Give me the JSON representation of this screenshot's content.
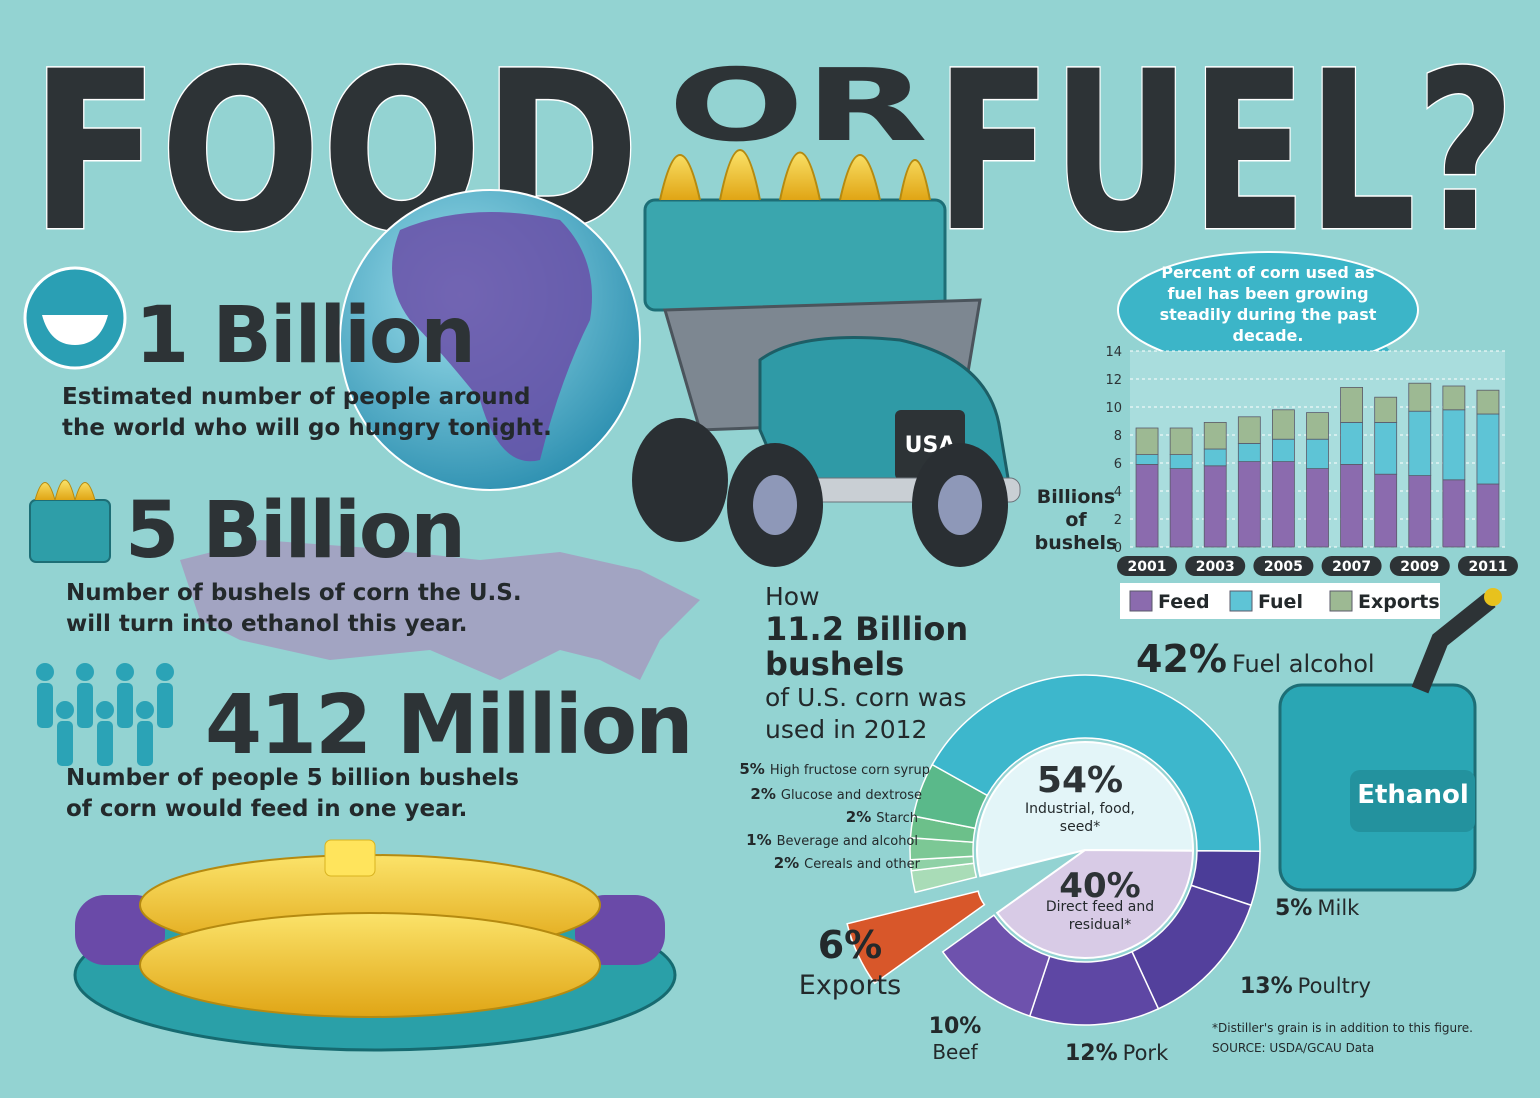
{
  "title": {
    "word1": "FOOD",
    "word2": "OR",
    "word3": "FUEL?"
  },
  "stats": [
    {
      "number": "1 Billion",
      "text": "Estimated number of people around the world who will go hungry tonight."
    },
    {
      "number": "5 Billion",
      "text": "Number of bushels of corn the U.S. will turn into ethanol this year."
    },
    {
      "number": "412 Million",
      "text": "Number of people 5 billion bushels of corn would feed in one year."
    }
  ],
  "labels": {
    "truck": "USA",
    "can": "Ethanol"
  },
  "chart_data": [
    {
      "type": "bar",
      "stacked": true,
      "annotation": "Percent of corn used as fuel has been growing steadily during the past decade.",
      "y_label": "Billions of bushels",
      "categories": [
        "2001",
        null,
        "2003",
        null,
        "2005",
        null,
        "2007",
        null,
        "2009",
        null,
        "2011"
      ],
      "series": [
        {
          "name": "Feed",
          "color": "#8b6bae",
          "values": [
            5.9,
            5.6,
            5.8,
            6.1,
            6.1,
            5.6,
            5.9,
            5.2,
            5.1,
            4.8,
            4.5
          ]
        },
        {
          "name": "Fuel",
          "color": "#5ec4d6",
          "values": [
            0.7,
            1.0,
            1.2,
            1.3,
            1.6,
            2.1,
            3.0,
            3.7,
            4.6,
            5.0,
            5.0
          ]
        },
        {
          "name": "Exports",
          "color": "#9db993",
          "values": [
            1.9,
            1.9,
            1.9,
            1.9,
            2.1,
            1.9,
            2.5,
            1.8,
            2.0,
            1.7,
            1.7
          ]
        }
      ],
      "ylim": [
        0,
        14
      ],
      "yticks": [
        0,
        2,
        4,
        6,
        8,
        10,
        12,
        14
      ],
      "grid": true,
      "legend": "bottom"
    },
    {
      "type": "pie",
      "title": [
        "How",
        "11.2 Billion",
        "bushels",
        "of U.S. corn was used in 2012"
      ],
      "categories": [
        "Cereals and other",
        "Beverage and alcohol",
        "Starch",
        "Glucose and dextrose",
        "High fructose corn syrup",
        "Fuel alcohol",
        "Milk",
        "Poultry",
        "Pork",
        "Beef",
        "Exports"
      ],
      "values": [
        2,
        1,
        2,
        2,
        5,
        42,
        5,
        13,
        12,
        10,
        6
      ],
      "value_labels": [
        "2%",
        "1%",
        "2%",
        "2%",
        "5%",
        "42%",
        "5%",
        "13%",
        "12%",
        "10%",
        "6%"
      ],
      "colors": [
        "#a9dcb7",
        "#8fd1a6",
        "#7cc895",
        "#6cc08a",
        "#5ab98a",
        "#3db7cc",
        "#4b3d98",
        "#53409c",
        "#5e47a4",
        "#6e52ad",
        "#d8572a"
      ],
      "groups": [
        {
          "name": "Industrial, food, seed*",
          "value": 54,
          "value_label": "54%",
          "color": "#e3f5f8"
        },
        {
          "name": "Direct feed and residual*",
          "value": 40,
          "value_label": "40%",
          "color": "#d8cbe6"
        }
      ]
    }
  ],
  "notes": [
    "*Distiller's grain is in addition to this figure.",
    "SOURCE: USDA/GCAU Data"
  ]
}
